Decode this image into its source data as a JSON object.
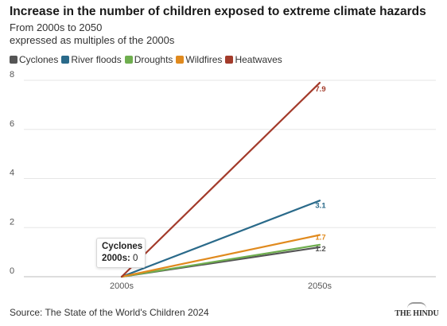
{
  "title": "Increase in the number of children exposed to extreme climate hazards",
  "subtitle_line1": "From 2000s to 2050",
  "subtitle_line2": "expressed as multiples of the 2000s",
  "source": "Source: The State of the World's Children 2024",
  "logo_text": "THE HINDU",
  "tooltip": {
    "series": "Cyclones",
    "label": "2000s:",
    "value": "0"
  },
  "chart_data": {
    "type": "line",
    "x": [
      "2000s",
      "2050s"
    ],
    "ylim": [
      0,
      8
    ],
    "yticks": [
      0,
      2,
      4,
      6,
      8
    ],
    "grid": true,
    "legend_position": "top-left",
    "series": [
      {
        "name": "Cyclones",
        "color": "#555555",
        "values": [
          0,
          1.2
        ],
        "end_label": "1.2"
      },
      {
        "name": "River floods",
        "color": "#2a6a8a",
        "values": [
          0,
          3.1
        ],
        "end_label": "3.1"
      },
      {
        "name": "Droughts",
        "color": "#6fae4f",
        "values": [
          0,
          1.3
        ],
        "end_label": ""
      },
      {
        "name": "Wildfires",
        "color": "#e08a1e",
        "values": [
          0,
          1.7
        ],
        "end_label": "1.7"
      },
      {
        "name": "Heatwaves",
        "color": "#a33b2b",
        "values": [
          0,
          7.9
        ],
        "end_label": "7.9"
      }
    ]
  }
}
